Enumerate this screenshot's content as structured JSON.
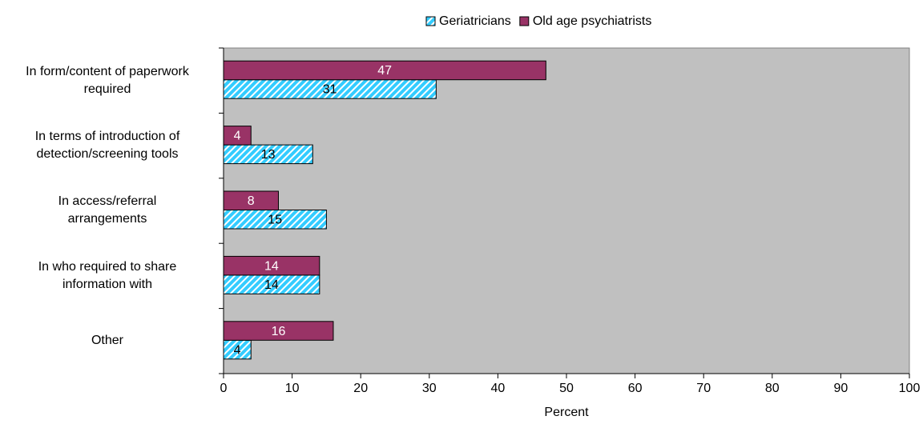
{
  "chart_data": {
    "type": "bar",
    "orientation": "horizontal",
    "categories": [
      "In form/content of paperwork\nrequired",
      "In terms of introduction of\ndetection/screening tools",
      "In access/referral\narrangements",
      "In who required to share\ninformation with",
      "Other"
    ],
    "series": [
      {
        "name": "Geriatricians",
        "color": "#33ccff",
        "values": [
          31,
          13,
          15,
          14,
          4
        ]
      },
      {
        "name": "Old age psychiatrists",
        "color": "#993366",
        "values": [
          47,
          4,
          8,
          14,
          16
        ]
      }
    ],
    "xlabel": "Percent",
    "xlim": [
      0,
      100
    ],
    "xticks": [
      0,
      10,
      20,
      30,
      40,
      50,
      60,
      70,
      80,
      90,
      100
    ],
    "plot_background": "#c0c0c0",
    "legend": "top"
  }
}
